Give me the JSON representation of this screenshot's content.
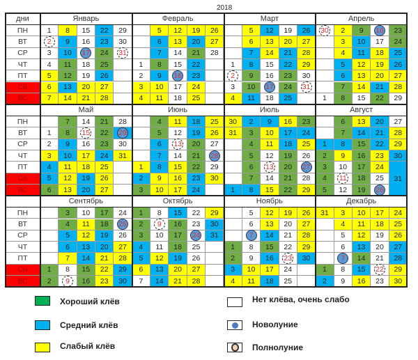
{
  "year": "2018",
  "days_header": "дни",
  "weekdays": [
    "ПН",
    "ВТ",
    "СР",
    "ЧТ",
    "ПТ",
    "СБ",
    "ВС"
  ],
  "colors": {
    "g": "#70ad47",
    "b": "#00b0f0",
    "y": "#ffff00",
    "w": "#ffffff",
    "weekend": "#ff0000"
  },
  "months": [
    {
      "name": "Январь",
      "rows": [
        [
          "1w",
          "8y",
          "15w",
          "22b",
          "29w"
        ],
        [
          "2wF",
          "9b",
          "16w",
          "23b",
          "30w"
        ],
        [
          "3w",
          "10b",
          "17wN",
          "24g",
          "31wF"
        ],
        [
          "4w",
          "11g",
          "18w",
          "25g",
          ""
        ],
        [
          "5y",
          "12g",
          "19w",
          "26b",
          ""
        ],
        [
          "6y",
          "13b",
          "20y",
          "27y",
          ""
        ],
        [
          "7y",
          "14y",
          "21y",
          "28y",
          ""
        ]
      ]
    },
    {
      "name": "Февраль",
      "rows": [
        [
          "",
          "5y",
          "12y",
          "19y",
          "26y"
        ],
        [
          "",
          "6b",
          "13y",
          "20b",
          "27y"
        ],
        [
          "",
          "7b",
          "14w",
          "21g",
          "28w"
        ],
        [
          "1w",
          "8g",
          "15w",
          "22b",
          ""
        ],
        [
          "2w",
          "9b",
          "16wN",
          "23b",
          ""
        ],
        [
          "3y",
          "10y",
          "17w",
          "24y",
          ""
        ],
        [
          "4y",
          "11y",
          "18w",
          "25y",
          ""
        ]
      ]
    },
    {
      "name": "Март",
      "rows": [
        [
          "",
          "5y",
          "12b",
          "19w",
          "26b"
        ],
        [
          "",
          "6y",
          "13y",
          "20y",
          "27y"
        ],
        [
          "",
          "7b",
          "14y",
          "21b",
          "28y"
        ],
        [
          "1w",
          "8b",
          "15w",
          "22b",
          "29y"
        ],
        [
          "2wF",
          "9g",
          "16w",
          "23g",
          "30w"
        ],
        [
          "3w",
          "10g",
          "17wN",
          "24g",
          "31wF"
        ],
        [
          "4y",
          "11b",
          "18w",
          "25b",
          ""
        ]
      ]
    },
    {
      "name": "Апрель",
      "rows": [
        [
          "30wF",
          "2y",
          "9g",
          "16wN",
          "23g"
        ],
        [
          "",
          "3y",
          "10b",
          "17w",
          "24g"
        ],
        [
          "",
          "4y",
          "11b",
          "18y",
          "25b"
        ],
        [
          "",
          "5b",
          "12y",
          "19y",
          "26b"
        ],
        [
          "",
          "6b",
          "13y",
          "20y",
          "27y"
        ],
        [
          "",
          "7g",
          "14y",
          "21b",
          "28y"
        ],
        [
          "1w",
          "8g",
          "15w",
          "22g",
          "29w"
        ]
      ]
    },
    {
      "name": "Май",
      "rows": [
        [
          "",
          "7g",
          "14w",
          "21g",
          "28w"
        ],
        [
          "1w",
          "8g",
          "15wF",
          "22g",
          "29bN"
        ],
        [
          "2w",
          "9b",
          "16w",
          "23g",
          "30w"
        ],
        [
          "3y",
          "10b",
          "17y",
          "24b",
          "31y"
        ],
        [
          "4b",
          "11y",
          "18y",
          "25y",
          ""
        ],
        [
          "5b",
          "12y",
          "19b",
          "26y",
          ""
        ],
        [
          "6g",
          "13y",
          "20b",
          "27y",
          ""
        ]
      ]
    },
    {
      "name": "Июнь",
      "rows": [
        [
          "",
          "4g",
          "11y",
          "18b",
          "25y"
        ],
        [
          "",
          "5g",
          "12w",
          "19b",
          "26y"
        ],
        [
          "",
          "6b",
          "13wF",
          "20g",
          "27w"
        ],
        [
          "",
          "7b",
          "14w",
          "21g",
          "28wN"
        ],
        [
          "1y",
          "8b",
          "15y",
          "22g",
          "29w"
        ],
        [
          "2b",
          "9y",
          "16y",
          "23b",
          "30y"
        ],
        [
          "3g",
          "10y",
          "17y",
          "24b",
          ""
        ]
      ]
    },
    {
      "name": "Июль",
      "rows": [
        [
          "30y",
          "2b",
          "9b",
          "16y",
          "23g"
        ],
        [
          "31y",
          "3g",
          "10y",
          "17b",
          "24b"
        ],
        [
          "",
          "4g",
          "11y",
          "18b",
          "25y"
        ],
        [
          "",
          "5g",
          "12w",
          "19g",
          "26w"
        ],
        [
          "",
          "6g",
          "13wF",
          "20g",
          "27wN"
        ],
        [
          "",
          "7g",
          "14w",
          "21g",
          "28w"
        ],
        [
          "1b",
          "8b",
          "15y",
          "22g",
          "29y"
        ]
      ]
    },
    {
      "name": "Август",
      "rows": [
        [
          "",
          "6g",
          "13y",
          "20b",
          "27w"
        ],
        [
          "",
          "7g",
          "14b",
          "21b",
          "28y"
        ],
        [
          "1b",
          "8b",
          "15g",
          "22b",
          "29y"
        ],
        [
          "2g",
          "9y",
          "16g",
          "23y",
          "30b"
        ],
        [
          "3g",
          "10w",
          "17g",
          "24y",
          "b"
        ],
        [
          "4g",
          "11wF",
          "18g",
          "25w",
          "31b"
        ],
        [
          "5g",
          "12w",
          "19g",
          "26wN",
          "b"
        ]
      ]
    },
    {
      "name": "Сентябрь",
      "rows": [
        [
          "",
          "3g",
          "10w",
          "17g",
          "24w"
        ],
        [
          "",
          "4g",
          "11y",
          "18g",
          "25wN"
        ],
        [
          "",
          "5b",
          "12y",
          "19b",
          "26w"
        ],
        [
          "",
          "6b",
          "13b",
          "20b",
          "27y"
        ],
        [
          "",
          "7y",
          "14b",
          "21y",
          "28y"
        ],
        [
          "1g",
          "8w",
          "15g",
          "22y",
          "29b"
        ],
        [
          "2g",
          "9wF",
          "16g",
          "23y",
          "30b"
        ]
      ]
    },
    {
      "name": "Октябрь",
      "rows": [
        [
          "1g",
          "8w",
          "15b",
          "22w",
          "29y"
        ],
        [
          "2g",
          "9wF",
          "16g",
          "23w",
          "30b"
        ],
        [
          "3g",
          "10w",
          "17g",
          "24wN",
          "31b"
        ],
        [
          "4b",
          "11w",
          "18g",
          "25w",
          ""
        ],
        [
          "5b",
          "12y",
          "19b",
          "26w",
          ""
        ],
        [
          "6y",
          "13b",
          "20y",
          "27y",
          ""
        ],
        [
          "7w",
          "14b",
          "21y",
          "28y",
          ""
        ]
      ]
    },
    {
      "name": "Ноябрь",
      "rows": [
        [
          "",
          "5w",
          "12y",
          "19y",
          "26y"
        ],
        [
          "",
          "6w",
          "13y",
          "20w",
          "27y"
        ],
        [
          "",
          "7wN",
          "14b",
          "21w",
          "28y"
        ],
        [
          "1g",
          "8w",
          "15g",
          "22w",
          "29y"
        ],
        [
          "2g",
          "9w",
          "16b",
          "23wF",
          "30b"
        ],
        [
          "3b",
          "10y",
          "17y",
          "24w",
          ""
        ],
        [
          "4y",
          "11y",
          "18b",
          "25w",
          ""
        ]
      ]
    },
    {
      "name": "Декабрь",
      "rows": [
        [
          "31y",
          "3y",
          "10y",
          "17y",
          "24y"
        ],
        [
          "",
          "4y",
          "11y",
          "18y",
          "25y"
        ],
        [
          "",
          "5w",
          "12y",
          "19w",
          "26y"
        ],
        [
          "",
          "6w",
          "13b",
          "20w",
          "27b"
        ],
        [
          "",
          "7wN",
          "14g",
          "21w",
          "28b"
        ],
        [
          "1g",
          "8w",
          "15b",
          "22wF",
          "29y"
        ],
        [
          "2b",
          "9w",
          "16y",
          "23w",
          "30y"
        ]
      ]
    }
  ],
  "legend": {
    "good": {
      "label": "Хороший клёв",
      "color": "#00b050"
    },
    "medium": {
      "label": "Средний клёв",
      "color": "#00b0f0"
    },
    "weak": {
      "label": "Слабый клёв",
      "color": "#ffff00"
    },
    "none": {
      "label": "Нет клёва, очень слабо",
      "color": "#ffffff"
    },
    "new_moon": {
      "label": "Новолуние"
    },
    "full_moon": {
      "label": "Полнолуние"
    }
  }
}
